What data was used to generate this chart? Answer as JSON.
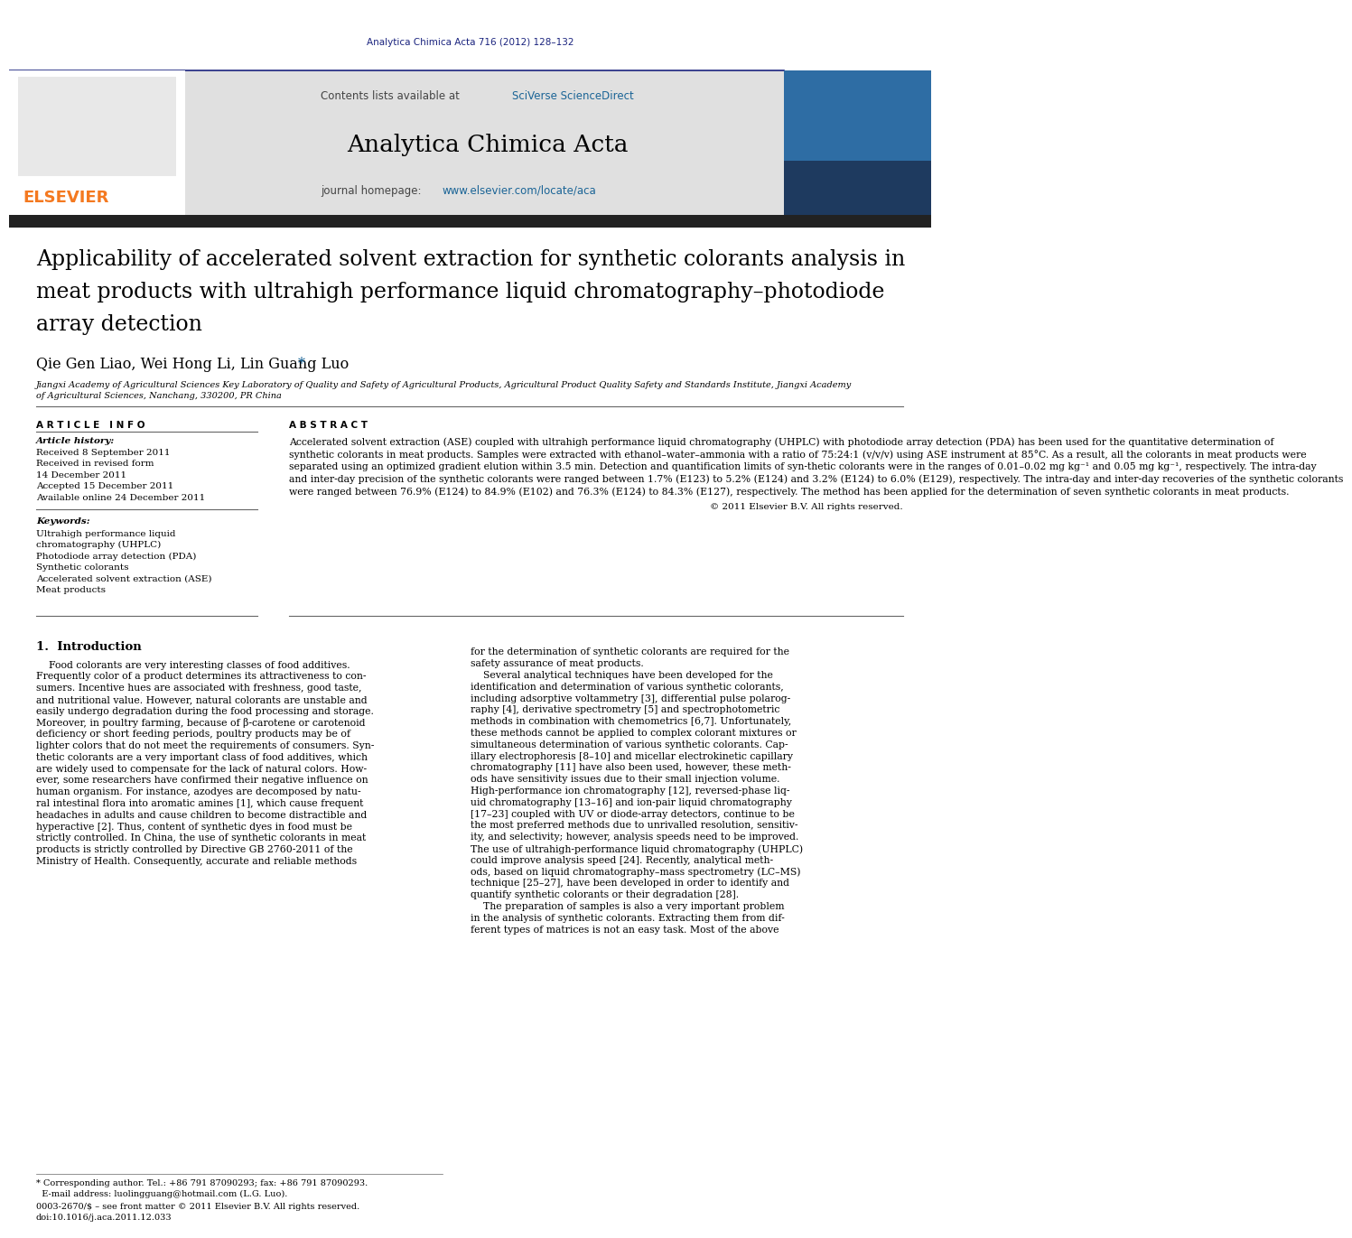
{
  "bg_color": "#ffffff",
  "top_citation": "Analytica Chimica Acta 716 (2012) 128–132",
  "top_citation_color": "#1a237e",
  "header_bg": "#e0e0e0",
  "journal_name": "Analytica Chimica Acta",
  "journal_homepage_link": "www.elsevier.com/locate/aca",
  "elsevier_orange": "#f47920",
  "link_color": "#1a6496",
  "dark_bar_color": "#2d2d2d",
  "cover_blue": "#1a5276",
  "article_title_line1": "Applicability of accelerated solvent extraction for synthetic colorants analysis in",
  "article_title_line2": "meat products with ultrahigh performance liquid chromatography–photodiode",
  "article_title_line3": "array detection",
  "authors": "Qie Gen Liao, Wei Hong Li, Lin Guang Luo",
  "affiliation_line1": "Jiangxi Academy of Agricultural Sciences Key Laboratory of Quality and Safety of Agricultural Products, Agricultural Product Quality Safety and Standards Institute, Jiangxi Academy",
  "affiliation_line2": "of Agricultural Sciences, Nanchang, 330200, PR China",
  "art_info_header": "A R T I C L E   I N F O",
  "abstract_header": "A B S T R A C T",
  "history_label": "Article history:",
  "history_lines": [
    "Received 8 September 2011",
    "Received in revised form",
    "14 December 2011",
    "Accepted 15 December 2011",
    "Available online 24 December 2011"
  ],
  "keywords_label": "Keywords:",
  "keywords_lines": [
    "Ultrahigh performance liquid",
    "chromatography (UHPLC)",
    "Photodiode array detection (PDA)",
    "Synthetic colorants",
    "Accelerated solvent extraction (ASE)",
    "Meat products"
  ],
  "abstract_lines": [
    "Accelerated solvent extraction (ASE) coupled with ultrahigh performance liquid chromatography (UHPLC) with photodiode array detection (PDA) has been used for the quantitative determination of",
    "synthetic colorants in meat products. Samples were extracted with ethanol–water–ammonia with a ratio of 75:24:1 (v/v/v) using ASE instrument at 85°C. As a result, all the colorants in meat products were",
    "separated using an optimized gradient elution within 3.5 min. Detection and quantification limits of syn-thetic colorants were in the ranges of 0.01–0.02 mg kg⁻¹ and 0.05 mg kg⁻¹, respectively. The intra-day",
    "and inter-day precision of the synthetic colorants were ranged between 1.7% (E123) to 5.2% (E124) and 3.2% (E124) to 6.0% (E129), respectively. The intra-day and inter-day recoveries of the synthetic colorants",
    "were ranged between 76.9% (E124) to 84.9% (E102) and 76.3% (E124) to 84.3% (E127), respectively. The method has been applied for the determination of seven synthetic colorants in meat products."
  ],
  "copyright": "© 2011 Elsevier B.V. All rights reserved.",
  "intro_title": "1.  Introduction",
  "intro_col1_lines": [
    "    Food colorants are very interesting classes of food additives.",
    "Frequently color of a product determines its attractiveness to con-",
    "sumers. Incentive hues are associated with freshness, good taste,",
    "and nutritional value. However, natural colorants are unstable and",
    "easily undergo degradation during the food processing and storage.",
    "Moreover, in poultry farming, because of β-carotene or carotenoid",
    "deficiency or short feeding periods, poultry products may be of",
    "lighter colors that do not meet the requirements of consumers. Syn-",
    "thetic colorants are a very important class of food additives, which",
    "are widely used to compensate for the lack of natural colors. How-",
    "ever, some researchers have confirmed their negative influence on",
    "human organism. For instance, azodyes are decomposed by natu-",
    "ral intestinal flora into aromatic amines [1], which cause frequent",
    "headaches in adults and cause children to become distractible and",
    "hyperactive [2]. Thus, content of synthetic dyes in food must be",
    "strictly controlled. In China, the use of synthetic colorants in meat",
    "products is strictly controlled by Directive GB 2760-2011 of the",
    "Ministry of Health. Consequently, accurate and reliable methods"
  ],
  "intro_col2_lines": [
    "for the determination of synthetic colorants are required for the",
    "safety assurance of meat products.",
    "    Several analytical techniques have been developed for the",
    "identification and determination of various synthetic colorants,",
    "including adsorptive voltammetry [3], differential pulse polarog-",
    "raphy [4], derivative spectrometry [5] and spectrophotometric",
    "methods in combination with chemometrics [6,7]. Unfortunately,",
    "these methods cannot be applied to complex colorant mixtures or",
    "simultaneous determination of various synthetic colorants. Cap-",
    "illary electrophoresis [8–10] and micellar electrokinetic capillary",
    "chromatography [11] have also been used, however, these meth-",
    "ods have sensitivity issues due to their small injection volume.",
    "High-performance ion chromatography [12], reversed-phase liq-",
    "uid chromatography [13–16] and ion-pair liquid chromatography",
    "[17–23] coupled with UV or diode-array detectors, continue to be",
    "the most preferred methods due to unrivalled resolution, sensitiv-",
    "ity, and selectivity; however, analysis speeds need to be improved.",
    "The use of ultrahigh-performance liquid chromatography (UHPLC)",
    "could improve analysis speed [24]. Recently, analytical meth-",
    "ods, based on liquid chromatography–mass spectrometry (LC–MS)",
    "technique [25–27], have been developed in order to identify and",
    "quantify synthetic colorants or their degradation [28].",
    "    The preparation of samples is also a very important problem",
    "in the analysis of synthetic colorants. Extracting them from dif-",
    "ferent types of matrices is not an easy task. Most of the above"
  ],
  "footnote1": "* Corresponding author. Tel.: +86 791 87090293; fax: +86 791 87090293.",
  "footnote2": "  E-mail address: luolingguang@hotmail.com (L.G. Luo).",
  "issn1": "0003-2670/$ – see front matter © 2011 Elsevier B.V. All rights reserved.",
  "issn2": "doi:10.1016/j.aca.2011.12.033"
}
